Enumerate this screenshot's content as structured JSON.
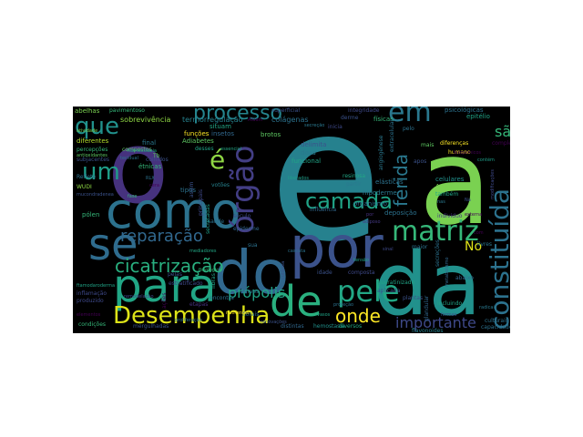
{
  "words": [
    {
      "text": "e",
      "color": "#26818e"
    },
    {
      "text": "a",
      "color": "#7ad151"
    },
    {
      "text": "o",
      "color": "#46327e"
    },
    {
      "text": "da",
      "color": "#21918c"
    },
    {
      "text": "por",
      "color": "#3b528b"
    },
    {
      "text": "do",
      "color": "#31688e"
    },
    {
      "text": "como",
      "color": "#2c728e"
    },
    {
      "text": "para",
      "color": "#21a685"
    },
    {
      "text": "se",
      "color": "#2f6c8e"
    },
    {
      "text": "de",
      "color": "#2ab07f"
    },
    {
      "text": "pele",
      "color": "#22a785"
    },
    {
      "text": "órgão",
      "color": "#433e85"
    },
    {
      "text": "Desempenha",
      "color": "#dde318"
    },
    {
      "text": "matriz",
      "color": "#35b779"
    },
    {
      "text": "constituída",
      "color": "#2c728e"
    },
    {
      "text": "camada",
      "color": "#20a386"
    },
    {
      "text": "em",
      "color": "#2a788e"
    },
    {
      "text": "é",
      "color": "#8fd744"
    },
    {
      "text": "que",
      "color": "#21918c"
    },
    {
      "text": "um",
      "color": "#1f9e89"
    },
    {
      "text": "processo",
      "color": "#25858e"
    },
    {
      "text": "cicatrização",
      "color": "#29af7f"
    },
    {
      "text": "reparação",
      "color": "#31688e"
    },
    {
      "text": "ferida",
      "color": "#2a788e"
    },
    {
      "text": "onde",
      "color": "#fde725"
    },
    {
      "text": "importante",
      "color": "#3e4989"
    },
    {
      "text": "própolis",
      "color": "#20a486"
    },
    {
      "text": "são",
      "color": "#35b779"
    },
    {
      "text": "No",
      "color": "#dde318"
    },
    {
      "text": "sobrevivência",
      "color": "#8fd744"
    },
    {
      "text": "termorregulação",
      "color": "#26828e"
    },
    {
      "text": "colágenas",
      "color": "#2c728e"
    },
    {
      "text": "superficial",
      "color": "#3b528b"
    },
    {
      "text": "integridade",
      "color": "#3e4989"
    },
    {
      "text": "psicológicas",
      "color": "#2c728e"
    },
    {
      "text": "epitélio",
      "color": "#20a486"
    },
    {
      "text": "pavimentoso",
      "color": "#35b779"
    },
    {
      "text": "abelhas",
      "color": "#7ad151"
    },
    {
      "text": "estratificado",
      "color": "#3e4989"
    },
    {
      "text": "funções",
      "color": "#fde725"
    },
    {
      "text": "insetos",
      "color": "#31688e"
    },
    {
      "text": "situam",
      "color": "#22a785"
    },
    {
      "text": "brotos",
      "color": "#5ec962"
    },
    {
      "text": "físicas",
      "color": "#35b779"
    },
    {
      "text": "diferentes",
      "color": "#b5de2b"
    },
    {
      "text": "diferenças",
      "color": "#fde725"
    },
    {
      "text": "complexo",
      "color": "#440154"
    },
    {
      "text": "humano",
      "color": "#fde725"
    },
    {
      "text": "final",
      "color": "#2a788e"
    },
    {
      "text": "Adiabetes",
      "color": "#5ec962"
    },
    {
      "text": "delimita",
      "color": "#3b528b"
    },
    {
      "text": "doas",
      "color": "#2a788e"
    },
    {
      "text": "funcional",
      "color": "#20a486"
    },
    {
      "text": "celulares",
      "color": "#21918c"
    },
    {
      "text": "elásticas",
      "color": "#2c728e"
    },
    {
      "text": "Arquivos",
      "color": "#7ad151"
    },
    {
      "text": "também",
      "color": "#20a486"
    },
    {
      "text": "étnicas",
      "color": "#35b779"
    },
    {
      "text": "Reflete",
      "color": "#2c728e"
    },
    {
      "text": "tipos",
      "color": "#2c728e"
    },
    {
      "text": "votões",
      "color": "#26828e"
    },
    {
      "text": "hipoderme",
      "color": "#2a788e"
    },
    {
      "text": "organismo",
      "color": "#2c728e"
    },
    {
      "text": "deposição",
      "color": "#2c728e"
    },
    {
      "text": "indivíduo",
      "color": "#443983"
    },
    {
      "text": "pólen",
      "color": "#35b779"
    },
    {
      "text": "saúde",
      "color": "#2c728e"
    },
    {
      "text": "século",
      "color": "#3e4989"
    },
    {
      "text": "influência",
      "color": "#31688e"
    },
    {
      "text": "epiderme",
      "color": "#31688e"
    },
    {
      "text": "sua",
      "color": "#2c728e"
    },
    {
      "text": "maior",
      "color": "#2c728e"
    },
    {
      "text": "livres",
      "color": "#2a788e"
    },
    {
      "text": "pelas",
      "color": "#3b528b"
    },
    {
      "text": "fibras",
      "color": "#20a486"
    },
    {
      "text": "idade",
      "color": "#3b528b"
    },
    {
      "text": "composta",
      "color": "#3e4989"
    },
    {
      "text": "queratinizado",
      "color": "#20a486"
    },
    {
      "text": "aplicada",
      "color": "#3b528b"
    },
    {
      "text": "abaixo",
      "color": "#31688e"
    },
    {
      "text": "encontra",
      "color": "#2c728e"
    },
    {
      "text": "etapas",
      "color": "#46327e"
    },
    {
      "text": "nervos",
      "color": "#2c728e"
    },
    {
      "text": "florais",
      "color": "#2c728e"
    },
    {
      "text": "plantas",
      "color": "#3b528b"
    },
    {
      "text": "incluindo",
      "color": "#20a486"
    },
    {
      "text": "condições",
      "color": "#35b779"
    },
    {
      "text": "mergulhadas",
      "color": "#3b528b"
    },
    {
      "text": "distintas",
      "color": "#31688e"
    },
    {
      "text": "hemostasia",
      "color": "#21918c"
    },
    {
      "text": "diversos",
      "color": "#22a785"
    },
    {
      "text": "flavonoides",
      "color": "#26828e"
    },
    {
      "text": "culturais",
      "color": "#2c728e"
    },
    {
      "text": "capacidade",
      "color": "#2c728e"
    },
    {
      "text": "inicia",
      "color": "#3e4989"
    },
    {
      "text": "derme",
      "color": "#3b528b"
    },
    {
      "text": "percepções",
      "color": "#35b779"
    },
    {
      "text": "compostos",
      "color": "#5ec962"
    },
    {
      "text": "desses",
      "color": "#20a486"
    },
    {
      "text": "partir",
      "color": "#2a788e"
    },
    {
      "text": "resinosa",
      "color": "#22a785"
    },
    {
      "text": "secretadas",
      "color": "#1f9e89"
    },
    {
      "text": "glandular",
      "color": "#31688e"
    },
    {
      "text": "secreções",
      "color": "#2c728e"
    },
    {
      "text": "angiogênese",
      "color": "#2a788e"
    },
    {
      "text": "extracelular",
      "color": "#2c728e"
    },
    {
      "text": "principais",
      "color": "#3e4989"
    },
    {
      "text": "assim",
      "color": "#3b528b"
    },
    {
      "text": "subjacentes",
      "color": "#3b528b"
    },
    {
      "text": "antioxidantes",
      "color": "#5ec962"
    },
    {
      "text": "produzido",
      "color": "#3e4989"
    },
    {
      "text": "inflamação",
      "color": "#3e4989"
    },
    {
      "text": "ações",
      "color": "#440154"
    },
    {
      "text": "colhidos",
      "color": "#3b528b"
    },
    {
      "text": "mais",
      "color": "#5ec962"
    },
    {
      "text": "pelo",
      "color": "#2c728e"
    },
    {
      "text": "apos",
      "color": "#3b528b"
    },
    {
      "text": "WUDI",
      "color": "#8fd744"
    },
    {
      "text": "tecidual",
      "color": "#2c728e"
    },
    {
      "text": "atividade",
      "color": "#7ad151"
    },
    {
      "text": "ftamodaroderma",
      "color": "#20a486"
    },
    {
      "text": "mucondradenea",
      "color": "#3b528b"
    },
    {
      "text": "radicais",
      "color": "#2a788e"
    },
    {
      "text": "remodelação",
      "color": "#3e4989"
    },
    {
      "text": "homeostasia",
      "color": "#20a486"
    },
    {
      "text": "renovações",
      "color": "#3b528b"
    },
    {
      "text": "Atuam",
      "color": "#440154"
    },
    {
      "text": "adiposo",
      "color": "#443983"
    },
    {
      "text": "com",
      "color": "#440154"
    },
    {
      "text": "nas",
      "color": "#2a788e"
    },
    {
      "text": "contém",
      "color": "#1f9e89"
    },
    {
      "text": "fase",
      "color": "#35b779"
    },
    {
      "text": "modificações",
      "color": "#3e4989"
    },
    {
      "text": "metabolismo",
      "color": "#31688e"
    },
    {
      "text": "cutânea",
      "color": "#3b528b"
    },
    {
      "text": "proteção",
      "color": "#2c728e"
    },
    {
      "text": "secreção",
      "color": "#2a788e"
    },
    {
      "text": "fisiológica",
      "color": "#35b779"
    },
    {
      "text": "nutrientes",
      "color": "#fde725"
    },
    {
      "text": "cascata",
      "color": "#2c728e"
    },
    {
      "text": "externa",
      "color": "#440154"
    },
    {
      "text": "elementos",
      "color": "#440154"
    },
    {
      "text": "formas",
      "color": "#3b528b"
    },
    {
      "text": "mediadores",
      "color": "#22a785"
    },
    {
      "text": "bioquímicos",
      "color": "#440154"
    },
    {
      "text": "liberados",
      "color": "#1f9e89"
    },
    {
      "text": "vasos",
      "color": "#20a486"
    },
    {
      "text": "tensão",
      "color": "#20a486"
    },
    {
      "text": "sinal",
      "color": "#3e4989"
    },
    {
      "text": "proliferação",
      "color": "#2c728e"
    },
    {
      "text": "cera",
      "color": "#440154"
    },
    {
      "text": "essencial",
      "color": "#22a785"
    },
    {
      "text": "Tb",
      "color": "#5ec962"
    },
    {
      "text": "Na",
      "color": "#3b528b"
    },
    {
      "text": "por",
      "color": "#46327e"
    },
    {
      "text": "RLX",
      "color": "#2c728e"
    }
  ]
}
